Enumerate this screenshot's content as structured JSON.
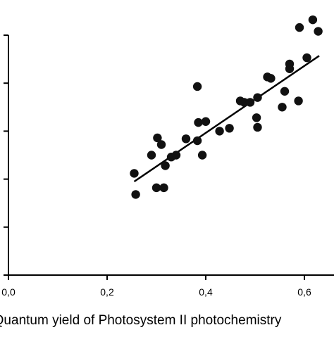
{
  "chart_data": {
    "type": "scatter",
    "title": "",
    "xlabel": "Quantum yield of Photosystem II photochemistry",
    "ylabel": "",
    "xlim": [
      0.0,
      0.66
    ],
    "ylim": [
      0.0,
      5.0
    ],
    "x_ticks": [
      0.0,
      0.2,
      0.4,
      0.6
    ],
    "x_tick_labels": [
      "0,0",
      "0,2",
      "0,4",
      "0,6"
    ],
    "y_ticks": [
      0,
      1,
      2,
      3,
      4,
      5
    ],
    "grid": false,
    "legend": "none",
    "marker_color": "#111111",
    "line_color": "#000000",
    "points": [
      {
        "x": 0.255,
        "y": 2.12
      },
      {
        "x": 0.258,
        "y": 1.68
      },
      {
        "x": 0.29,
        "y": 2.5
      },
      {
        "x": 0.3,
        "y": 1.82
      },
      {
        "x": 0.302,
        "y": 2.86
      },
      {
        "x": 0.31,
        "y": 2.72
      },
      {
        "x": 0.315,
        "y": 1.82
      },
      {
        "x": 0.318,
        "y": 2.28
      },
      {
        "x": 0.33,
        "y": 2.46
      },
      {
        "x": 0.34,
        "y": 2.5
      },
      {
        "x": 0.36,
        "y": 2.84
      },
      {
        "x": 0.383,
        "y": 3.93
      },
      {
        "x": 0.383,
        "y": 2.8
      },
      {
        "x": 0.385,
        "y": 3.18
      },
      {
        "x": 0.393,
        "y": 2.5
      },
      {
        "x": 0.4,
        "y": 3.2
      },
      {
        "x": 0.428,
        "y": 3.0
      },
      {
        "x": 0.448,
        "y": 3.06
      },
      {
        "x": 0.47,
        "y": 3.63
      },
      {
        "x": 0.478,
        "y": 3.6
      },
      {
        "x": 0.49,
        "y": 3.6
      },
      {
        "x": 0.503,
        "y": 3.28
      },
      {
        "x": 0.505,
        "y": 3.08
      },
      {
        "x": 0.505,
        "y": 3.7
      },
      {
        "x": 0.525,
        "y": 4.13
      },
      {
        "x": 0.532,
        "y": 4.1
      },
      {
        "x": 0.555,
        "y": 3.5
      },
      {
        "x": 0.56,
        "y": 3.83
      },
      {
        "x": 0.57,
        "y": 4.3
      },
      {
        "x": 0.57,
        "y": 4.4
      },
      {
        "x": 0.588,
        "y": 3.63
      },
      {
        "x": 0.59,
        "y": 5.16
      },
      {
        "x": 0.605,
        "y": 4.53
      },
      {
        "x": 0.617,
        "y": 5.32
      },
      {
        "x": 0.628,
        "y": 5.08
      }
    ],
    "trendline": {
      "x": [
        0.255,
        0.63
      ],
      "y": [
        1.95,
        4.57
      ]
    }
  }
}
